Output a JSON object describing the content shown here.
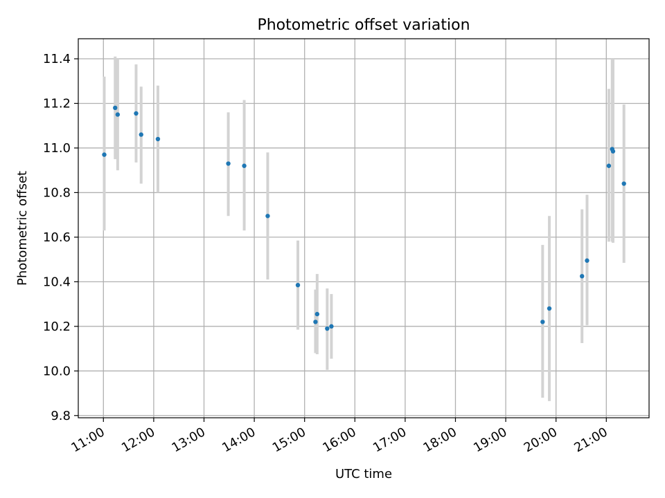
{
  "chart_data": {
    "type": "scatter",
    "title": "Photometric offset variation",
    "xlabel": "UTC time",
    "ylabel": "Photometric offset",
    "x_tick_labels": [
      "11:00",
      "12:00",
      "13:00",
      "14:00",
      "15:00",
      "16:00",
      "17:00",
      "18:00",
      "19:00",
      "20:00",
      "21:00"
    ],
    "y_ticks": [
      "9.8",
      "10.0",
      "10.2",
      "10.4",
      "10.6",
      "10.8",
      "11.0",
      "11.2",
      "11.4"
    ],
    "xlim": [
      "10:30",
      "21:51"
    ],
    "ylim": [
      9.79,
      11.49
    ],
    "grid": true,
    "colors": {
      "point": "#1f77b4",
      "errorbar": "#d3d3d3",
      "grid": "#b0b0b0"
    },
    "points": [
      {
        "x": "11:01",
        "y": 10.97,
        "yerr_low": 10.63,
        "yerr_high": 11.32
      },
      {
        "x": "11:14",
        "y": 11.18,
        "yerr_low": 10.95,
        "yerr_high": 11.41
      },
      {
        "x": "11:17",
        "y": 11.15,
        "yerr_low": 10.9,
        "yerr_high": 11.4
      },
      {
        "x": "11:39",
        "y": 11.155,
        "yerr_low": 10.935,
        "yerr_high": 11.375
      },
      {
        "x": "11:45",
        "y": 11.06,
        "yerr_low": 10.84,
        "yerr_high": 11.275
      },
      {
        "x": "12:05",
        "y": 11.04,
        "yerr_low": 10.8,
        "yerr_high": 11.28
      },
      {
        "x": "13:29",
        "y": 10.93,
        "yerr_low": 10.695,
        "yerr_high": 11.16
      },
      {
        "x": "13:48",
        "y": 10.92,
        "yerr_low": 10.63,
        "yerr_high": 11.215
      },
      {
        "x": "14:16",
        "y": 10.695,
        "yerr_low": 10.41,
        "yerr_high": 10.98
      },
      {
        "x": "14:52",
        "y": 10.385,
        "yerr_low": 10.185,
        "yerr_high": 10.585
      },
      {
        "x": "15:13",
        "y": 10.22,
        "yerr_low": 10.08,
        "yerr_high": 10.365
      },
      {
        "x": "15:15",
        "y": 10.255,
        "yerr_low": 10.075,
        "yerr_high": 10.435
      },
      {
        "x": "15:27",
        "y": 10.19,
        "yerr_low": 10.005,
        "yerr_high": 10.37
      },
      {
        "x": "15:32",
        "y": 10.2,
        "yerr_low": 10.055,
        "yerr_high": 10.345
      },
      {
        "x": "19:44",
        "y": 10.22,
        "yerr_low": 9.88,
        "yerr_high": 10.565
      },
      {
        "x": "19:52",
        "y": 10.28,
        "yerr_low": 9.865,
        "yerr_high": 10.695
      },
      {
        "x": "20:31",
        "y": 10.425,
        "yerr_low": 10.125,
        "yerr_high": 10.725
      },
      {
        "x": "20:37",
        "y": 10.495,
        "yerr_low": 10.205,
        "yerr_high": 10.79
      },
      {
        "x": "21:03",
        "y": 10.92,
        "yerr_low": 10.58,
        "yerr_high": 11.265
      },
      {
        "x": "21:07",
        "y": 10.995,
        "yerr_low": 10.58,
        "yerr_high": 11.4
      },
      {
        "x": "21:08",
        "y": 10.985,
        "yerr_low": 10.575,
        "yerr_high": 11.4
      },
      {
        "x": "21:21",
        "y": 10.84,
        "yerr_low": 10.485,
        "yerr_high": 11.195
      }
    ]
  }
}
